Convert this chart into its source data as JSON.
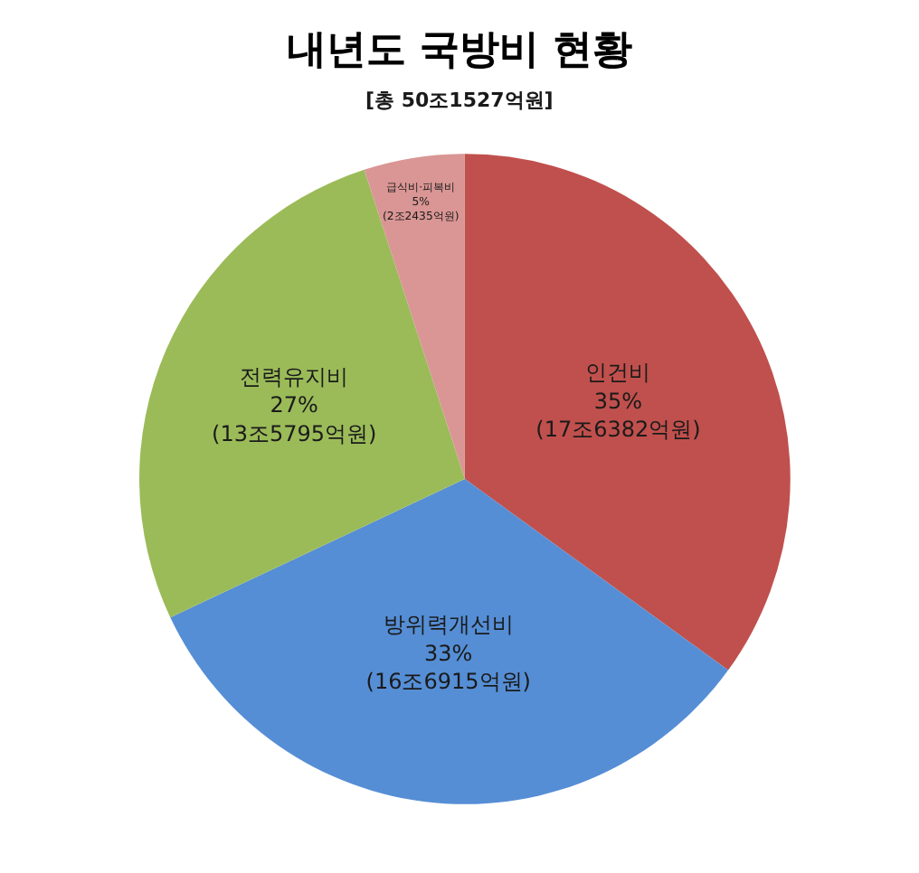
{
  "chart_data": {
    "type": "pie",
    "title": "내년도 국방비 현황",
    "subtitle": "[총 50조1527억원]",
    "categories": [
      "인건비",
      "방위력개선비",
      "전력유지비",
      "급식비·피복비"
    ],
    "values": [
      35,
      33,
      27,
      5
    ],
    "colors": [
      "#c0504d",
      "#558ed5",
      "#9bbb59",
      "#d99694"
    ],
    "value_labels": [
      "35%\n(17조6382억원)",
      "33%\n(16조6915억원)",
      "27%\n(13조5795억원)",
      "5%\n(2조2435억원)"
    ]
  }
}
